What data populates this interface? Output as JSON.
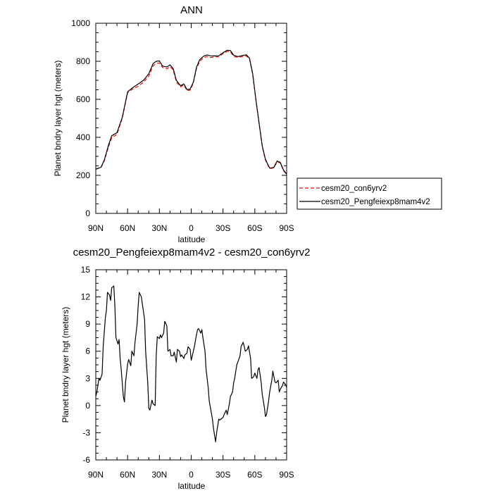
{
  "chart_data": [
    {
      "type": "line",
      "title": "ANN",
      "xlabel": "latitude",
      "ylabel": "Planet bndry layer hgt (meters)",
      "xlim": [
        90,
        -90
      ],
      "ylim": [
        0,
        1000
      ],
      "xticks": [
        90,
        60,
        30,
        0,
        -30,
        -60,
        -90
      ],
      "xtick_labels": [
        "90N",
        "60N",
        "30N",
        "0",
        "30S",
        "60S",
        "90S"
      ],
      "yticks": [
        0,
        200,
        400,
        600,
        800,
        1000
      ],
      "ytick_labels": [
        "0",
        "200",
        "400",
        "600",
        "800",
        "1000"
      ],
      "grid": false,
      "legend": {
        "placement": "right-outside"
      },
      "series": [
        {
          "name": "cesm20_con6yrv2",
          "color": "#ff0000",
          "style": "dashed",
          "x": [
            90,
            85,
            82,
            78,
            75,
            70,
            65,
            60,
            55,
            50,
            45,
            40,
            36,
            33,
            30,
            27,
            23,
            20,
            17,
            14,
            10,
            7,
            4,
            1,
            -2,
            -5,
            -8,
            -12,
            -15,
            -18,
            -22,
            -26,
            -30,
            -34,
            -37,
            -40,
            -44,
            -48,
            -52,
            -55,
            -58,
            -61,
            -64,
            -67,
            -70,
            -74,
            -78,
            -81,
            -84,
            -87,
            -90
          ],
          "y": [
            232,
            242,
            275,
            350,
            398,
            415,
            500,
            635,
            655,
            668,
            690,
            722,
            775,
            790,
            790,
            768,
            760,
            772,
            755,
            692,
            665,
            676,
            646,
            648,
            685,
            762,
            800,
            820,
            825,
            820,
            822,
            825,
            840,
            852,
            850,
            826,
            820,
            825,
            828,
            812,
            730,
            595,
            470,
            350,
            280,
            235,
            240,
            272,
            265,
            225,
            205
          ]
        },
        {
          "name": "cesm20_Pengfeiexp8mam4v2",
          "color": "#000000",
          "style": "solid",
          "x": [
            90,
            85,
            82,
            78,
            75,
            70,
            65,
            60,
            55,
            50,
            45,
            40,
            36,
            33,
            30,
            27,
            23,
            20,
            17,
            14,
            10,
            7,
            4,
            1,
            -2,
            -5,
            -8,
            -12,
            -15,
            -18,
            -22,
            -26,
            -30,
            -34,
            -37,
            -40,
            -44,
            -48,
            -52,
            -55,
            -58,
            -61,
            -64,
            -67,
            -70,
            -74,
            -78,
            -81,
            -84,
            -87,
            -90
          ],
          "y": [
            233,
            243,
            280,
            360,
            408,
            425,
            505,
            640,
            662,
            680,
            700,
            735,
            787,
            800,
            802,
            775,
            770,
            781,
            762,
            700,
            671,
            681,
            651,
            654,
            690,
            768,
            808,
            828,
            833,
            829,
            828,
            829,
            845,
            858,
            856,
            832,
            825,
            830,
            834,
            816,
            735,
            600,
            475,
            354,
            284,
            238,
            242,
            276,
            268,
            228,
            207
          ]
        }
      ]
    },
    {
      "type": "line",
      "title": "cesm20_Pengfeiexp8mam4v2 - cesm20_con6yrv2",
      "xlabel": "latitude",
      "ylabel": "Planet bndry layer hgt (meters)",
      "xlim": [
        90,
        -90
      ],
      "ylim": [
        -6,
        15
      ],
      "xticks": [
        90,
        60,
        30,
        0,
        -30,
        -60,
        -90
      ],
      "xtick_labels": [
        "90N",
        "60N",
        "30N",
        "0",
        "30S",
        "60S",
        "90S"
      ],
      "yticks": [
        -6,
        -3,
        0,
        3,
        6,
        9,
        12,
        15
      ],
      "ytick_labels": [
        "-6",
        "-3",
        "0",
        "3",
        "6",
        "9",
        "12",
        "15"
      ],
      "grid": false,
      "series": [
        {
          "color": "#000000",
          "style": "solid",
          "x": [
            90,
            89,
            87,
            86,
            84,
            83,
            81,
            80,
            79,
            77,
            76,
            75,
            73,
            72,
            71,
            69,
            68,
            67,
            66,
            64,
            63,
            62,
            60,
            59,
            57,
            56,
            54,
            53,
            51,
            50,
            49,
            47,
            46,
            44,
            43,
            41,
            40,
            39,
            37,
            36,
            34,
            33,
            32,
            30,
            29,
            28,
            26,
            25,
            23,
            22,
            20,
            19,
            17,
            16,
            14,
            13,
            11,
            10,
            9,
            7,
            6,
            4,
            3,
            1,
            0,
            -1,
            -3,
            -4,
            -6,
            -7,
            -9,
            -10,
            -11,
            -13,
            -14,
            -16,
            -17,
            -19,
            -20,
            -21,
            -23,
            -24,
            -26,
            -27,
            -29,
            -30,
            -31,
            -33,
            -34,
            -36,
            -37,
            -39,
            -40,
            -41,
            -43,
            -44,
            -46,
            -47,
            -49,
            -50,
            -51,
            -53,
            -54,
            -56,
            -57,
            -59,
            -60,
            -62,
            -63,
            -64,
            -66,
            -67,
            -69,
            -70,
            -71,
            -73,
            -74,
            -76,
            -77,
            -79,
            -80,
            -82,
            -83,
            -84,
            -86,
            -87,
            -89,
            -90
          ],
          "y": [
            1.0,
            1.5,
            3.0,
            2.8,
            3.5,
            6.5,
            9.7,
            10.5,
            12.5,
            12.2,
            11.6,
            13.0,
            13.2,
            11.0,
            7.5,
            6.8,
            7.3,
            5.2,
            4.0,
            1.0,
            0.4,
            2.5,
            4.6,
            5.1,
            4.4,
            6.0,
            5.5,
            7.0,
            9.0,
            11.0,
            12.5,
            12.0,
            11.2,
            9.5,
            6.0,
            2.5,
            -0.3,
            -0.5,
            0.6,
            0.2,
            0.0,
            5.5,
            7.6,
            7.4,
            7.8,
            7.5,
            8.0,
            9.3,
            8.8,
            6.0,
            6.2,
            5.5,
            5.5,
            5.9,
            4.8,
            6.2,
            6.0,
            5.4,
            5.6,
            5.2,
            5.6,
            5.8,
            6.5,
            6.2,
            5.0,
            5.5,
            6.5,
            7.2,
            8.4,
            8.5,
            8.0,
            8.4,
            7.5,
            6.0,
            4.0,
            2.0,
            0.5,
            -0.8,
            -1.5,
            -2.5,
            -4.0,
            -3.0,
            -1.5,
            -1.6,
            -1.4,
            -1.3,
            -1.0,
            -0.5,
            -1.0,
            0.2,
            1.0,
            1.5,
            2.5,
            3.0,
            4.5,
            4.8,
            5.5,
            6.5,
            7.0,
            6.5,
            6.0,
            6.2,
            6.6,
            5.2,
            3.0,
            3.2,
            3.6,
            3.0,
            4.0,
            4.2,
            2.5,
            1.2,
            -0.2,
            -1.2,
            -1.0,
            0.5,
            1.5,
            2.8,
            3.8,
            2.6,
            2.5,
            2.8,
            1.5,
            1.8,
            2.2,
            2.6,
            2.3,
            2.0
          ]
        }
      ]
    }
  ]
}
